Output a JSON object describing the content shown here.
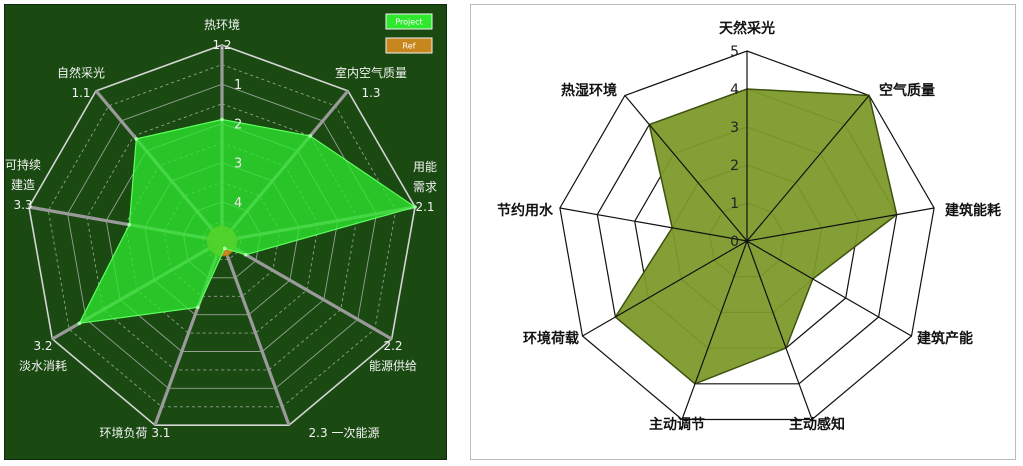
{
  "chart_data": [
    {
      "type": "radar",
      "categories": [
        "热环境",
        "室内空气质量",
        "用能需求",
        "能源供给",
        "一次能源",
        "环境负荷",
        "淡水消耗",
        "可持续建造",
        "自然采光"
      ],
      "category_labels": [
        [
          "热环境",
          "1.2"
        ],
        [
          "室内空气质量",
          "1.3"
        ],
        [
          "用能",
          "需求",
          "2.1"
        ],
        [
          "2.2",
          "能源供给"
        ],
        [
          "2.3 一次能源"
        ],
        [
          "环境负荷 3.1"
        ],
        [
          "3.2",
          "淡水消耗"
        ],
        [
          "可持续",
          "建造",
          "3.3"
        ],
        [
          "自然采光",
          "1.1"
        ]
      ],
      "radial_ticks": [
        "1",
        "2",
        "3",
        "4"
      ],
      "rlim": [
        5,
        0
      ],
      "series": [
        {
          "name": "Project",
          "values": [
            1.9,
            1.5,
            0.0,
            4.3,
            4.8,
            3.2,
            0.8,
            2.6,
            1.6
          ]
        },
        {
          "name": "Ref",
          "values": [
            4.6,
            4.6,
            4.6,
            4.6,
            4.6,
            4.6,
            4.6,
            4.6,
            4.6
          ]
        }
      ],
      "legend": "top-right",
      "grid": true,
      "colors": {
        "background": "#1a4a12",
        "project_fill": "#2ee82e",
        "ref_fill": "#c8861e",
        "axis": "#9a9a9a",
        "grid": "#c8c8c8"
      }
    },
    {
      "type": "radar",
      "categories": [
        "天然采光",
        "空气质量",
        "建筑能耗",
        "建筑产能",
        "主动感知",
        "主动调节",
        "环境荷载",
        "节约用水",
        "热湿环境"
      ],
      "radial_ticks": [
        "0",
        "1",
        "2",
        "3",
        "4",
        "5"
      ],
      "rlim": [
        0,
        5
      ],
      "series": [
        {
          "values": [
            4.0,
            5.0,
            4.0,
            2.0,
            3.0,
            4.0,
            4.0,
            2.0,
            4.0
          ]
        }
      ],
      "grid": true,
      "colors": {
        "fill": "#7d9a2a",
        "fill_stroke": "#3e5210",
        "grid": "#111111"
      }
    }
  ]
}
